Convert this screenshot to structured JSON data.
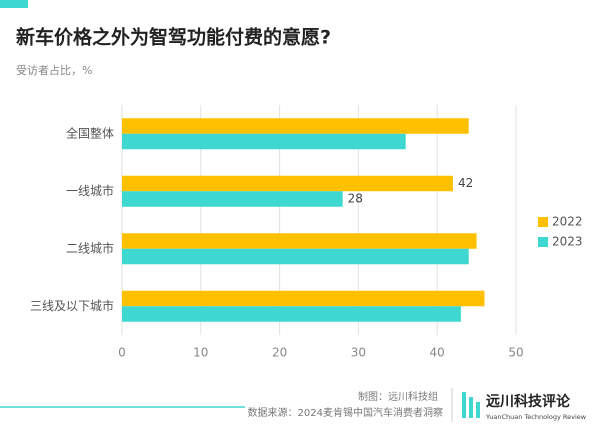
{
  "chart_data": {
    "type": "bar",
    "orientation": "horizontal",
    "title": "新车价格之外为智驾功能付费的意愿?",
    "subtitle": "受访者占比，%",
    "categories": [
      "全国整体",
      "一线城市",
      "二线城市",
      "三线及以下城市"
    ],
    "series": [
      {
        "name": "2022",
        "color": "#ffc000",
        "values": [
          44,
          42,
          45,
          46
        ],
        "value_labels": [
          null,
          "42",
          null,
          null
        ]
      },
      {
        "name": "2023",
        "color": "#3ed8d0",
        "values": [
          36,
          28,
          44,
          43
        ],
        "value_labels": [
          null,
          "28",
          null,
          null
        ]
      }
    ],
    "xlim": [
      0,
      50
    ],
    "xticks": [
      0,
      10,
      20,
      30,
      40,
      50
    ],
    "grid": true,
    "legend": "right"
  },
  "footer": {
    "credit": "制图：远川科技组",
    "source": "数据来源：2024麦肯锡中国汽车消费者洞察",
    "brand": "远川科技评论",
    "brand_en": "YuanChuan Technology Review"
  }
}
